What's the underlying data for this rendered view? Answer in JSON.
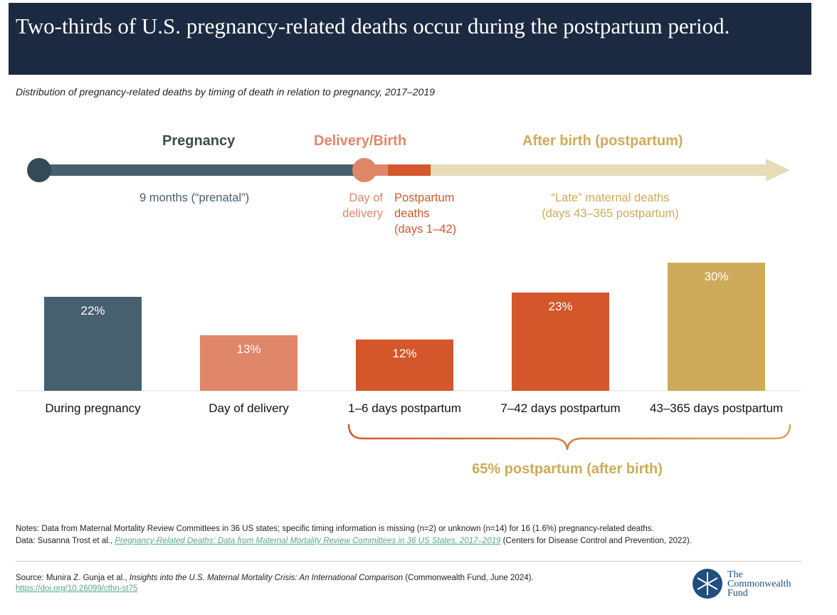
{
  "title": "Two-thirds of U.S. pregnancy-related deaths occur during the postpartum period.",
  "subtitle": "Distribution of pregnancy-related deaths by timing of death in relation to pregnancy, 2017–2019",
  "timeline": {
    "phases": [
      "Pregnancy",
      "Delivery/Birth",
      "After birth (postpartum)"
    ],
    "prenatal": "9 months (“prenatal”)",
    "day_of_delivery": [
      "Day of",
      "delivery"
    ],
    "postpartum": [
      "Postpartum",
      "deaths",
      "(days 1–42)"
    ],
    "late": [
      "“Late” maternal deaths",
      "(days 43–365 postpartum)"
    ]
  },
  "colors": {
    "pregnancy": "#46606f",
    "day_of_delivery": "#e0876a",
    "early_postpartum": "#d4572b",
    "late_postpartum": "#cdab5a",
    "late_light": "#e8dcb8",
    "title_bg": "#1b2a41"
  },
  "chart_data": {
    "type": "bar",
    "categories": [
      "During pregnancy",
      "Day of delivery",
      "1–6 days postpartum",
      "7–42 days postpartum",
      "43–365 days postpartum"
    ],
    "values": [
      22,
      13,
      12,
      23,
      30
    ],
    "labels": [
      "22%",
      "13%",
      "12%",
      "23%",
      "30%"
    ],
    "ylim": [
      0,
      30
    ],
    "grid": false,
    "bracket_label": "65% postpartum (after birth)"
  },
  "notes": {
    "notes": "Notes: Data from Maternal Mortality Review Committees in 36 US states; specific timing information is missing (n=2) or unknown (n=14) for 16 (1.6%) pregnancy-related deaths.",
    "data_prefix": "Data: Susanna Trost et al., ",
    "data_link": "Pregnancy-Related Deaths: Data from Maternal Mortality Review Committees in 36 US States, 2017–2019",
    "data_suffix": " (Centers for Disease Control and Prevention, 2022).",
    "source_prefix": "Source: Munira Z. Gunja et al., ",
    "source_title": "Insights into the U.S. Maternal Mortality Crisis: An International Comparison",
    "source_suffix": " (Commonwealth Fund, June 2024).",
    "doi": "https://doi.org/10.26099/cthn-st75"
  },
  "logo": [
    "The",
    "Commonwealth",
    "Fund"
  ]
}
